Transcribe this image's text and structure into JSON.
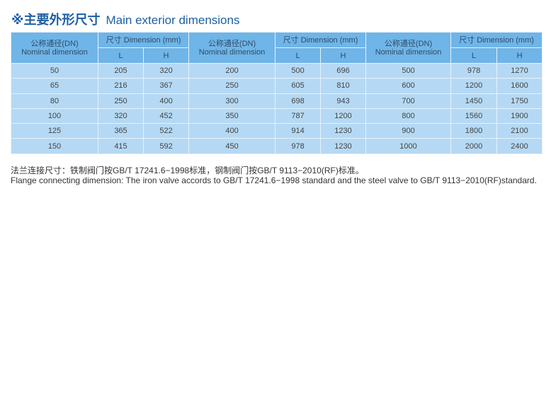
{
  "title": {
    "cn": "※主要外形尺寸",
    "en": "Main exterior dimensions"
  },
  "table": {
    "dn_header_cn": "公称通径(DN)",
    "dn_header_en": "Nominal dimension",
    "dim_header": "尺寸 Dimension (mm)",
    "L": "L",
    "H": "H",
    "rows": [
      [
        "50",
        "205",
        "320",
        "200",
        "500",
        "696",
        "500",
        "978",
        "1270"
      ],
      [
        "65",
        "216",
        "367",
        "250",
        "605",
        "810",
        "600",
        "1200",
        "1600"
      ],
      [
        "80",
        "250",
        "400",
        "300",
        "698",
        "943",
        "700",
        "1450",
        "1750"
      ],
      [
        "100",
        "320",
        "452",
        "350",
        "787",
        "1200",
        "800",
        "1560",
        "1900"
      ],
      [
        "125",
        "365",
        "522",
        "400",
        "914",
        "1230",
        "900",
        "1800",
        "2100"
      ],
      [
        "150",
        "415",
        "592",
        "450",
        "978",
        "1230",
        "1000",
        "2000",
        "2400"
      ]
    ]
  },
  "note": {
    "cn": "法兰连接尺寸：铁制阀门按GB/T 17241.6−1998标准，钢制阀门按GB/T 9113−2010(RF)标准。",
    "en": "Flange connecting dimension: The iron valve accords to GB/T 17241.6−1998  standard and the steel valve to GB/T 9113−2010(RF)standard."
  }
}
